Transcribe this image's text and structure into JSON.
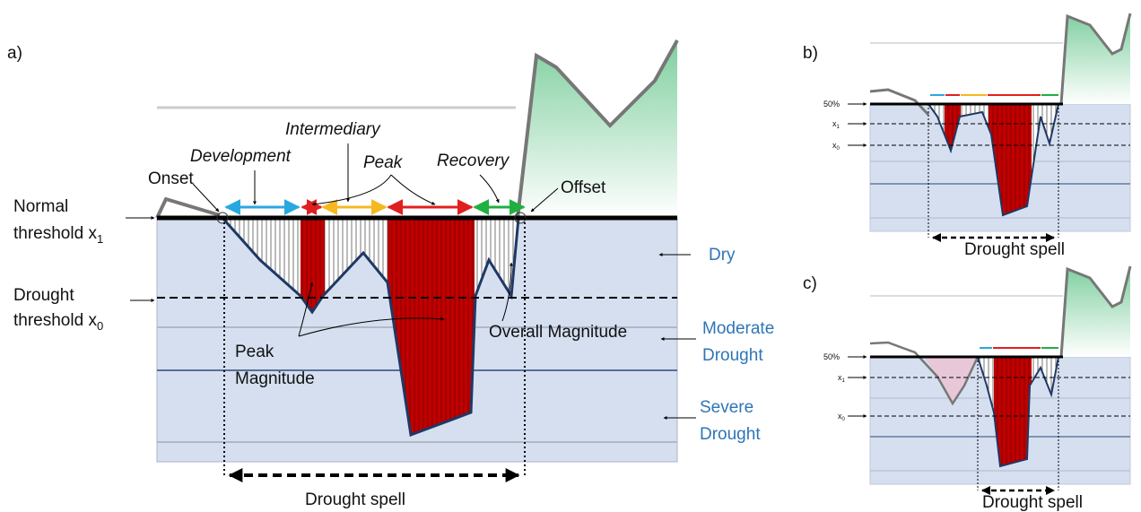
{
  "panel_a": {
    "label": "a)",
    "normal_threshold": {
      "line1": "Normal",
      "line2": "threshold x",
      "sub": "1"
    },
    "drought_threshold": {
      "line1": "Drought",
      "line2": "threshold x",
      "sub": "0"
    },
    "phases": {
      "onset": "Onset",
      "development": "Development",
      "intermediary": "Intermediary",
      "peak": "Peak",
      "recovery": "Recovery",
      "offset": "Offset"
    },
    "classes": {
      "dry": "Dry",
      "moderate": [
        "Moderate",
        "Drought"
      ],
      "severe": [
        "Severe",
        "Drought"
      ]
    },
    "peak_magnitude": [
      "Peak",
      "Magnitude"
    ],
    "overall_magnitude": "Overall Magnitude",
    "drought_spell": "Drought spell"
  },
  "panel_b": {
    "label": "b)",
    "level_50": "50%",
    "x1": {
      "text": "x",
      "sub": "1"
    },
    "x0": {
      "text": "x",
      "sub": "0"
    },
    "drought_spell": "Drought spell"
  },
  "panel_c": {
    "label": "c)",
    "level_50": "50%",
    "x1": {
      "text": "x",
      "sub": "1"
    },
    "x0": {
      "text": "x",
      "sub": "0"
    },
    "drought_spell": "Drought spell"
  }
}
